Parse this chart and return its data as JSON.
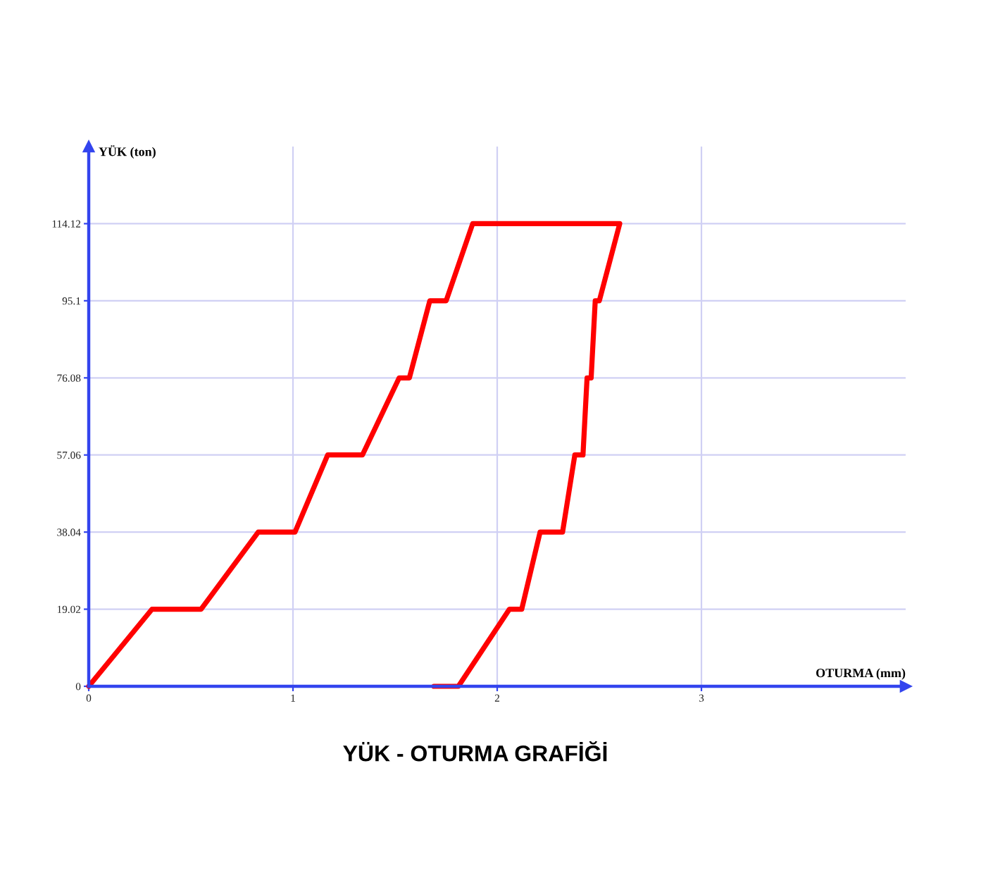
{
  "chart_data": {
    "type": "line",
    "title": "YÜK - OTURMA GRAFİĞİ",
    "xlabel": "OTURMA (mm)",
    "ylabel": "YÜK (ton)",
    "xlim": [
      0,
      4
    ],
    "xticks": [
      0,
      1,
      2,
      3
    ],
    "ylim": [
      0,
      133.14
    ],
    "yticks": [
      0,
      19.02,
      38.04,
      57.06,
      76.08,
      95.1,
      114.12
    ],
    "grid": true,
    "line_style": "solid",
    "series": [
      {
        "color": "#ff0000",
        "x": [
          0,
          0.31,
          0.55,
          0.83,
          1.01,
          1.17,
          1.34,
          1.52,
          1.57,
          1.67,
          1.75,
          1.88,
          2.6,
          2.5,
          2.48,
          2.46,
          2.44,
          2.42,
          2.38,
          2.32,
          2.21,
          2.12,
          2.06,
          1.81,
          1.69
        ],
        "values": [
          0,
          19.02,
          19.02,
          38.04,
          38.04,
          57.06,
          57.06,
          76.08,
          76.08,
          95.1,
          95.1,
          114.12,
          114.12,
          95.1,
          95.1,
          76.08,
          76.08,
          57.06,
          57.06,
          38.04,
          38.04,
          19.02,
          19.02,
          0,
          0
        ]
      }
    ]
  }
}
